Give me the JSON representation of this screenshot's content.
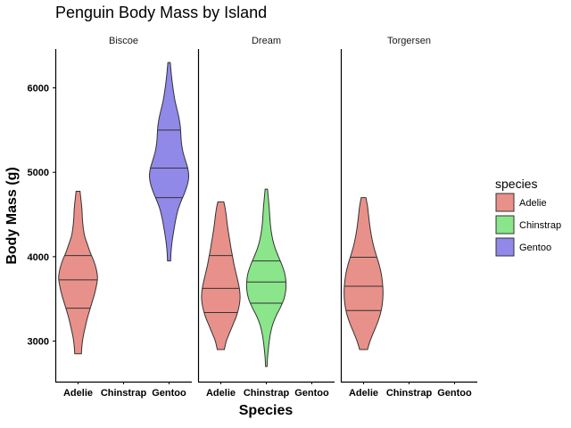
{
  "chart_data": {
    "type": "violin",
    "title": "Penguin Body Mass by Island",
    "xlabel": "Species",
    "ylabel": "Body Mass (g)",
    "categories": [
      "Adelie",
      "Chinstrap",
      "Gentoo"
    ],
    "yticks": [
      3000,
      4000,
      5000,
      6000
    ],
    "ylim": [
      2520,
      6460
    ],
    "quantiles": [
      0.25,
      0.5,
      0.75
    ],
    "legend": {
      "title": "species",
      "position": "right",
      "entries": [
        {
          "name": "Adelie",
          "color": "#E8908A"
        },
        {
          "name": "Chinstrap",
          "color": "#8BE68B"
        },
        {
          "name": "Gentoo",
          "color": "#9089E8"
        }
      ]
    },
    "facets": [
      {
        "name": "Biscoe",
        "violins": [
          {
            "species": "Adelie",
            "min": 2850,
            "max": 4775,
            "q1": 3390,
            "median": 3725,
            "q3": 4013,
            "profile": [
              [
                2850,
                0.17
              ],
              [
                2950,
                0.2
              ],
              [
                3050,
                0.26
              ],
              [
                3150,
                0.35
              ],
              [
                3250,
                0.45
              ],
              [
                3350,
                0.57
              ],
              [
                3450,
                0.7
              ],
              [
                3550,
                0.83
              ],
              [
                3650,
                0.93
              ],
              [
                3750,
                0.99
              ],
              [
                3850,
                0.93
              ],
              [
                3950,
                0.8
              ],
              [
                4050,
                0.62
              ],
              [
                4150,
                0.47
              ],
              [
                4250,
                0.33
              ],
              [
                4350,
                0.26
              ],
              [
                4450,
                0.22
              ],
              [
                4550,
                0.2
              ],
              [
                4650,
                0.16
              ],
              [
                4775,
                0.1
              ]
            ]
          },
          {
            "species": "Gentoo",
            "min": 3950,
            "max": 6300,
            "q1": 4700,
            "median": 5050,
            "q3": 5500,
            "profile": [
              [
                3950,
                0.08
              ],
              [
                4050,
                0.1
              ],
              [
                4150,
                0.14
              ],
              [
                4250,
                0.2
              ],
              [
                4350,
                0.27
              ],
              [
                4450,
                0.35
              ],
              [
                4550,
                0.45
              ],
              [
                4650,
                0.6
              ],
              [
                4750,
                0.78
              ],
              [
                4850,
                0.93
              ],
              [
                4950,
                1.0
              ],
              [
                5050,
                0.95
              ],
              [
                5150,
                0.82
              ],
              [
                5250,
                0.7
              ],
              [
                5350,
                0.63
              ],
              [
                5450,
                0.6
              ],
              [
                5550,
                0.57
              ],
              [
                5650,
                0.5
              ],
              [
                5750,
                0.4
              ],
              [
                5850,
                0.3
              ],
              [
                5950,
                0.23
              ],
              [
                6050,
                0.17
              ],
              [
                6150,
                0.12
              ],
              [
                6250,
                0.08
              ],
              [
                6300,
                0.06
              ]
            ]
          }
        ]
      },
      {
        "name": "Dream",
        "violins": [
          {
            "species": "Adelie",
            "min": 2900,
            "max": 4650,
            "q1": 3338,
            "median": 3625,
            "q3": 4013,
            "profile": [
              [
                2900,
                0.18
              ],
              [
                3000,
                0.28
              ],
              [
                3100,
                0.45
              ],
              [
                3200,
                0.63
              ],
              [
                3300,
                0.8
              ],
              [
                3400,
                0.92
              ],
              [
                3500,
                0.98
              ],
              [
                3600,
                0.96
              ],
              [
                3700,
                0.88
              ],
              [
                3800,
                0.78
              ],
              [
                3900,
                0.68
              ],
              [
                4000,
                0.6
              ],
              [
                4100,
                0.52
              ],
              [
                4200,
                0.45
              ],
              [
                4300,
                0.38
              ],
              [
                4400,
                0.32
              ],
              [
                4500,
                0.27
              ],
              [
                4600,
                0.2
              ],
              [
                4650,
                0.15
              ]
            ]
          },
          {
            "species": "Chinstrap",
            "min": 2700,
            "max": 4800,
            "q1": 3450,
            "median": 3700,
            "q3": 3950,
            "profile": [
              [
                2700,
                0.04
              ],
              [
                2800,
                0.06
              ],
              [
                2900,
                0.1
              ],
              [
                3000,
                0.15
              ],
              [
                3100,
                0.22
              ],
              [
                3200,
                0.33
              ],
              [
                3300,
                0.5
              ],
              [
                3400,
                0.72
              ],
              [
                3500,
                0.9
              ],
              [
                3600,
                0.99
              ],
              [
                3700,
                1.0
              ],
              [
                3800,
                0.94
              ],
              [
                3900,
                0.8
              ],
              [
                4000,
                0.62
              ],
              [
                4100,
                0.45
              ],
              [
                4200,
                0.33
              ],
              [
                4300,
                0.25
              ],
              [
                4400,
                0.2
              ],
              [
                4500,
                0.17
              ],
              [
                4600,
                0.14
              ],
              [
                4700,
                0.1
              ],
              [
                4800,
                0.06
              ]
            ]
          }
        ]
      },
      {
        "name": "Torgersen",
        "violins": [
          {
            "species": "Adelie",
            "min": 2900,
            "max": 4700,
            "q1": 3363,
            "median": 3650,
            "q3": 3994,
            "profile": [
              [
                2900,
                0.2
              ],
              [
                3000,
                0.33
              ],
              [
                3100,
                0.5
              ],
              [
                3200,
                0.68
              ],
              [
                3300,
                0.83
              ],
              [
                3400,
                0.93
              ],
              [
                3500,
                0.98
              ],
              [
                3600,
                0.99
              ],
              [
                3700,
                0.96
              ],
              [
                3800,
                0.9
              ],
              [
                3900,
                0.8
              ],
              [
                4000,
                0.67
              ],
              [
                4100,
                0.54
              ],
              [
                4200,
                0.44
              ],
              [
                4300,
                0.36
              ],
              [
                4400,
                0.3
              ],
              [
                4500,
                0.25
              ],
              [
                4600,
                0.2
              ],
              [
                4700,
                0.12
              ]
            ]
          }
        ]
      }
    ]
  }
}
